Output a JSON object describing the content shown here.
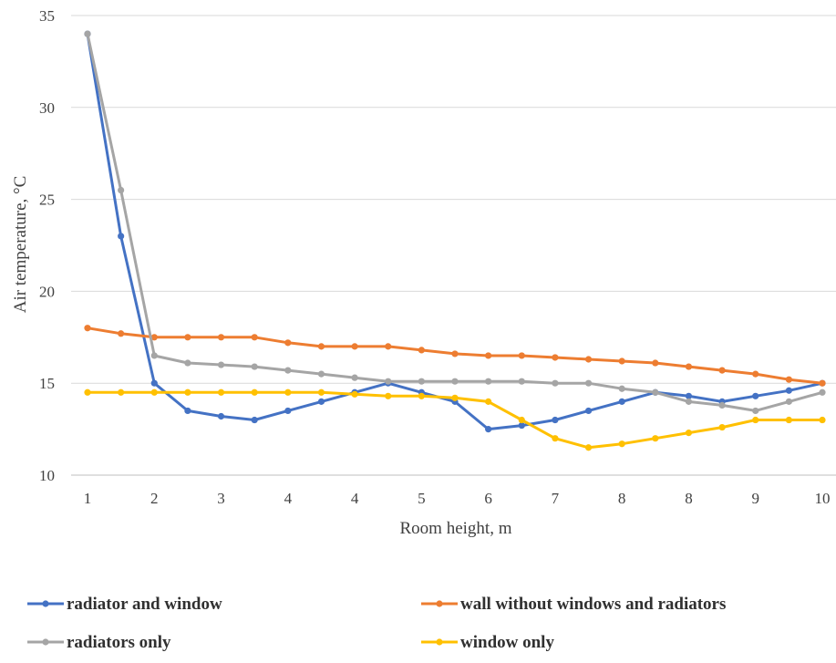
{
  "chart_data": {
    "type": "line",
    "title": "",
    "xlabel": "Room height, m",
    "ylabel": "Air temperature, °C",
    "ylim": [
      10,
      35
    ],
    "yticks": [
      "10",
      "15",
      "20",
      "25",
      "30",
      "35"
    ],
    "x_tick_labels": [
      "1",
      "2",
      "3",
      "4",
      "4",
      "5",
      "6",
      "7",
      "8",
      "8",
      "9",
      "10"
    ],
    "grid": "horizontal",
    "legend_position": "bottom",
    "points_per_series": 23,
    "series": [
      {
        "name": "radiator and window",
        "color": "#4472c4",
        "values": [
          34,
          23,
          15,
          13.5,
          13.2,
          13,
          13.5,
          14,
          14.5,
          15,
          14.5,
          14,
          12.5,
          12.7,
          13,
          13.5,
          14,
          14.5,
          14.3,
          14,
          14.3,
          14.6,
          15
        ]
      },
      {
        "name": "wall without windows and radiators",
        "color": "#ed7d31",
        "values": [
          18,
          17.7,
          17.5,
          17.5,
          17.5,
          17.5,
          17.2,
          17,
          17,
          17,
          16.8,
          16.6,
          16.5,
          16.5,
          16.4,
          16.3,
          16.2,
          16.1,
          15.9,
          15.7,
          15.5,
          15.2,
          15
        ]
      },
      {
        "name": "radiators only",
        "color": "#a5a5a5",
        "values": [
          34,
          25.5,
          16.5,
          16.1,
          16,
          15.9,
          15.7,
          15.5,
          15.3,
          15.1,
          15.1,
          15.1,
          15.1,
          15.1,
          15,
          15,
          14.7,
          14.5,
          14,
          13.8,
          13.5,
          14,
          14.5
        ]
      },
      {
        "name": "window only",
        "color": "#ffc000",
        "values": [
          14.5,
          14.5,
          14.5,
          14.5,
          14.5,
          14.5,
          14.5,
          14.5,
          14.4,
          14.3,
          14.3,
          14.2,
          14,
          13,
          12,
          11.5,
          11.7,
          12,
          12.3,
          12.6,
          13,
          13,
          13
        ]
      }
    ]
  }
}
